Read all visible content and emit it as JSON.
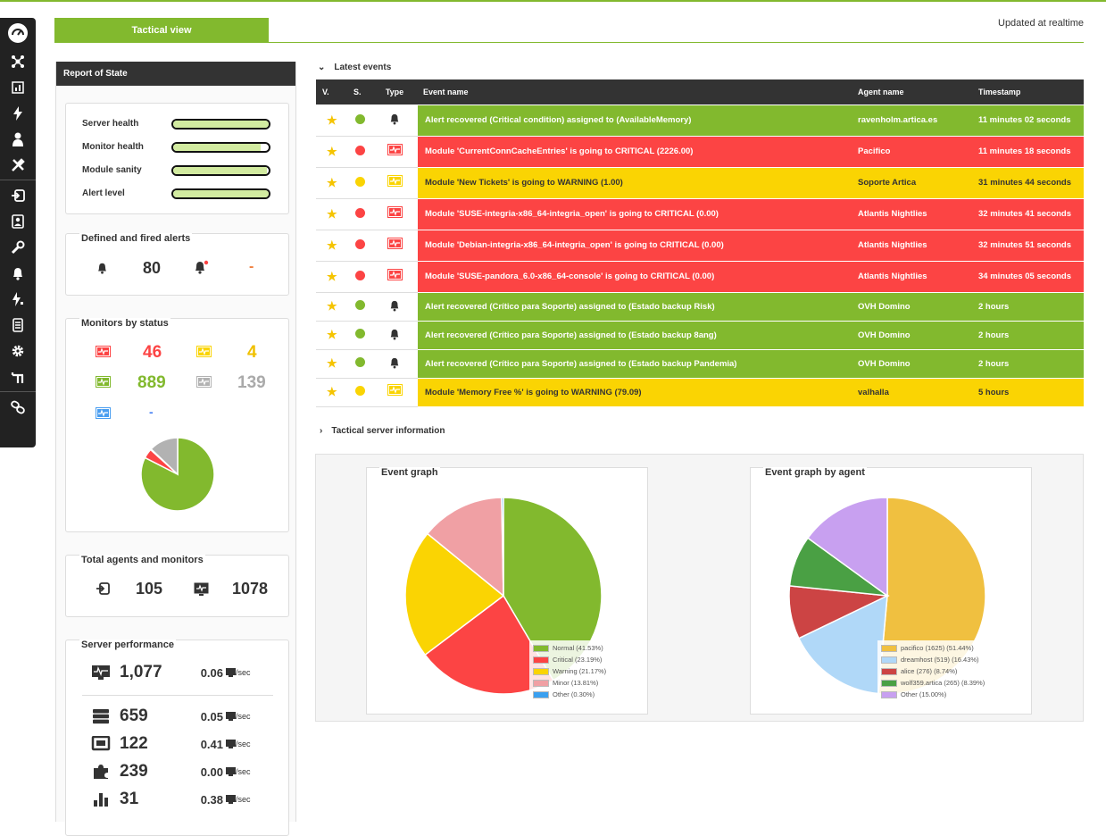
{
  "header": {
    "tab_label": "Tactical view",
    "updated": "Updated at realtime"
  },
  "sidebar": {
    "icons": [
      "speedometer-icon",
      "network-icon",
      "report-icon",
      "lightning-icon",
      "user-icon",
      "tools-icon",
      "agent-icon",
      "profile-icon",
      "wrench-icon",
      "bell-icon",
      "alert-lightning-icon",
      "servers-icon",
      "gear-icon",
      "extensions-icon",
      "links-icon"
    ]
  },
  "report": {
    "title": "Report of State",
    "health": [
      {
        "label": "Server health",
        "value": 1.0
      },
      {
        "label": "Monitor health",
        "value": 0.92
      },
      {
        "label": "Module sanity",
        "value": 0.98
      },
      {
        "label": "Alert level",
        "value": 1.0
      }
    ],
    "alerts": {
      "title": "Defined and fired alerts",
      "defined": "80",
      "fired": "-"
    },
    "monitors": {
      "title": "Monitors by status",
      "critical": "46",
      "warning": "4",
      "normal": "889",
      "unknown": "139",
      "not_init": "-",
      "pie": [
        {
          "label": "normal",
          "value": 889,
          "color": "#82b92e"
        },
        {
          "label": "critical",
          "value": 46,
          "color": "#fc4444"
        },
        {
          "label": "warning",
          "value": 4,
          "color": "#fad403"
        },
        {
          "label": "unknown",
          "value": 139,
          "color": "#b2b2b2"
        }
      ],
      "colors": {
        "critical": "#fc4444",
        "warning": "#fad403",
        "normal": "#82b92e",
        "unknown": "#b2b2b2",
        "not_init": "#4a83f3"
      }
    },
    "totals": {
      "title": "Total agents and monitors",
      "agents": "105",
      "monitors": "1078"
    },
    "performance": {
      "title": "Server performance",
      "unit": "/sec",
      "rows": [
        {
          "icon": "monitor-icon",
          "value": "1,077",
          "rate": "0.06"
        },
        {
          "icon": "database-icon",
          "value": "659",
          "rate": "0.05"
        },
        {
          "icon": "network-card-icon",
          "value": "122",
          "rate": "0.41"
        },
        {
          "icon": "plugin-icon",
          "value": "239",
          "rate": "0.00"
        },
        {
          "icon": "bar-chart-icon",
          "value": "31",
          "rate": "0.38"
        }
      ]
    }
  },
  "events": {
    "title": "Latest events",
    "columns": {
      "v": "V.",
      "s": "S.",
      "type": "Type",
      "name": "Event name",
      "agent": "Agent name",
      "time": "Timestamp"
    },
    "rows": [
      {
        "status": "green",
        "type": "bell",
        "name": "Alert recovered (Critical condition) assigned to (AvailableMemory)",
        "agent": "ravenholm.artica.es",
        "time": "11 minutes 02 seconds"
      },
      {
        "status": "red",
        "type": "monitor",
        "name": "Module 'CurrentConnCacheEntries' is going to CRITICAL (2226.00)",
        "agent": "Pacifico",
        "time": "11 minutes 18 seconds"
      },
      {
        "status": "yellow",
        "type": "monitor",
        "name": "Module 'New Tickets' is going to WARNING (1.00)",
        "agent": "Soporte Artica",
        "time": "31 minutes 44 seconds"
      },
      {
        "status": "red",
        "type": "monitor",
        "name": "Module 'SUSE-integria-x86_64-integria_open' is going to CRITICAL (0.00)",
        "agent": "Atlantis Nightlies",
        "time": "32 minutes 41 seconds"
      },
      {
        "status": "red",
        "type": "monitor",
        "name": "Module 'Debian-integria-x86_64-integria_open' is going to CRITICAL (0.00)",
        "agent": "Atlantis Nightlies",
        "time": "32 minutes 51 seconds"
      },
      {
        "status": "red",
        "type": "monitor",
        "name": "Module 'SUSE-pandora_6.0-x86_64-console' is going to CRITICAL (0.00)",
        "agent": "Atlantis Nightlies",
        "time": "34 minutes 05 seconds"
      },
      {
        "status": "green",
        "type": "bell",
        "name": "Alert recovered (Crítico para Soporte) assigned to (Estado backup Risk)",
        "agent": "OVH Domino",
        "time": "2 hours"
      },
      {
        "status": "green",
        "type": "bell",
        "name": "Alert recovered (Crítico para Soporte) assigned to (Estado backup 8ang)",
        "agent": "OVH Domino",
        "time": "2 hours"
      },
      {
        "status": "green",
        "type": "bell",
        "name": "Alert recovered (Crítico para Soporte) assigned to (Estado backup Pandemia)",
        "agent": "OVH Domino",
        "time": "2 hours"
      },
      {
        "status": "yellow",
        "type": "monitor",
        "name": "Module 'Memory Free %' is going to WARNING (79.09)",
        "agent": "valhalla",
        "time": "5 hours"
      }
    ]
  },
  "tactical_title": "Tactical server information",
  "chart_data": [
    {
      "type": "pie",
      "title": "Event graph",
      "slices": [
        {
          "label": "Normal (41.53%)",
          "value": 41.53,
          "color": "#82b92e"
        },
        {
          "label": "Critical (23.19%)",
          "value": 23.19,
          "color": "#fc4444"
        },
        {
          "label": "Warning (21.17%)",
          "value": 21.17,
          "color": "#fad403"
        },
        {
          "label": "Minor (13.81%)",
          "value": 13.81,
          "color": "#f0a0a4"
        },
        {
          "label": "Other (0.30%)",
          "value": 0.3,
          "color": "#3aa0f0"
        }
      ],
      "legend": "bottom-right"
    },
    {
      "type": "pie",
      "title": "Event graph by agent",
      "slices": [
        {
          "label": "pacifico (1625) (51.44%)",
          "value": 51.44,
          "color": "#f0c040"
        },
        {
          "label": "dreamhost (519) (16.43%)",
          "value": 16.43,
          "color": "#b0d8f8"
        },
        {
          "label": "alice (276) (8.74%)",
          "value": 8.74,
          "color": "#cc4444"
        },
        {
          "label": "wolf359.artica (265) (8.39%)",
          "value": 8.39,
          "color": "#4aa044"
        },
        {
          "label": "Other (15.00%)",
          "value": 15.0,
          "color": "#c8a0f0"
        }
      ],
      "legend": "bottom-right"
    }
  ]
}
